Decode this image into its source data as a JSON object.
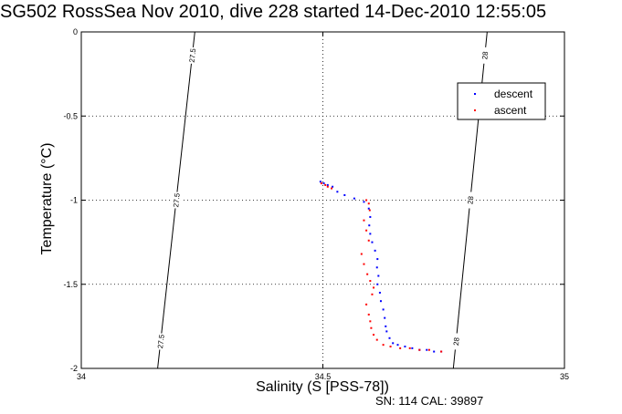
{
  "chart_data": {
    "type": "scatter",
    "title": "SG502 RossSea Nov 2010, dive 228 started 14-Dec-2010 12:55:05",
    "xlabel": "Salinity (S [PSS-78])",
    "ylabel": "Temperature (°C)",
    "footer": "SN: 114  CAL: 39897",
    "xlim": [
      34,
      35
    ],
    "ylim": [
      -2,
      0
    ],
    "xticks": [
      "34",
      "34.5",
      "35"
    ],
    "yticks": [
      "0",
      "-0.5",
      "-1",
      "-1.5",
      "-2"
    ],
    "grid": true,
    "legend": {
      "position": "top-right",
      "entries": [
        "descent",
        "ascent"
      ]
    },
    "density_contours": [
      {
        "label": "27.5",
        "points": [
          [
            34.158,
            -2
          ],
          [
            34.235,
            0
          ]
        ]
      },
      {
        "label": "28",
        "points": [
          [
            34.77,
            -2
          ],
          [
            34.84,
            0
          ]
        ]
      }
    ],
    "series": [
      {
        "name": "descent",
        "color": "#0000ff",
        "points": [
          [
            34.495,
            -0.89
          ],
          [
            34.502,
            -0.9
          ],
          [
            34.51,
            -0.91
          ],
          [
            34.52,
            -0.92
          ],
          [
            34.53,
            -0.95
          ],
          [
            34.545,
            -0.97
          ],
          [
            34.565,
            -0.99
          ],
          [
            34.585,
            -1.01
          ],
          [
            34.595,
            -1.05
          ],
          [
            34.598,
            -1.1
          ],
          [
            34.596,
            -1.15
          ],
          [
            34.598,
            -1.2
          ],
          [
            34.602,
            -1.25
          ],
          [
            34.608,
            -1.3
          ],
          [
            34.613,
            -1.35
          ],
          [
            34.612,
            -1.4
          ],
          [
            34.615,
            -1.45
          ],
          [
            34.613,
            -1.5
          ],
          [
            34.618,
            -1.55
          ],
          [
            34.62,
            -1.6
          ],
          [
            34.625,
            -1.65
          ],
          [
            34.628,
            -1.7
          ],
          [
            34.63,
            -1.75
          ],
          [
            34.632,
            -1.78
          ],
          [
            34.638,
            -1.82
          ],
          [
            34.645,
            -1.85
          ],
          [
            34.655,
            -1.86
          ],
          [
            34.67,
            -1.87
          ],
          [
            34.685,
            -1.88
          ],
          [
            34.7,
            -1.89
          ],
          [
            34.715,
            -1.89
          ],
          [
            34.73,
            -1.9
          ],
          [
            34.745,
            -1.9
          ]
        ]
      },
      {
        "name": "ascent",
        "color": "#ff0000",
        "points": [
          [
            34.497,
            -0.9
          ],
          [
            34.505,
            -0.91
          ],
          [
            34.51,
            -0.92
          ],
          [
            34.518,
            -0.93
          ],
          [
            34.59,
            -1.0
          ],
          [
            34.595,
            -1.02
          ],
          [
            34.597,
            -1.06
          ],
          [
            34.585,
            -1.12
          ],
          [
            34.59,
            -1.18
          ],
          [
            34.595,
            -1.24
          ],
          [
            34.58,
            -1.32
          ],
          [
            34.585,
            -1.38
          ],
          [
            34.592,
            -1.44
          ],
          [
            34.598,
            -1.48
          ],
          [
            34.605,
            -1.52
          ],
          [
            34.602,
            -1.56
          ],
          [
            34.59,
            -1.62
          ],
          [
            34.595,
            -1.68
          ],
          [
            34.598,
            -1.72
          ],
          [
            34.6,
            -1.76
          ],
          [
            34.605,
            -1.8
          ],
          [
            34.612,
            -1.83
          ],
          [
            34.625,
            -1.86
          ],
          [
            34.64,
            -1.87
          ],
          [
            34.66,
            -1.88
          ],
          [
            34.68,
            -1.88
          ],
          [
            34.7,
            -1.89
          ],
          [
            34.72,
            -1.89
          ],
          [
            34.745,
            -1.9
          ]
        ]
      }
    ]
  }
}
